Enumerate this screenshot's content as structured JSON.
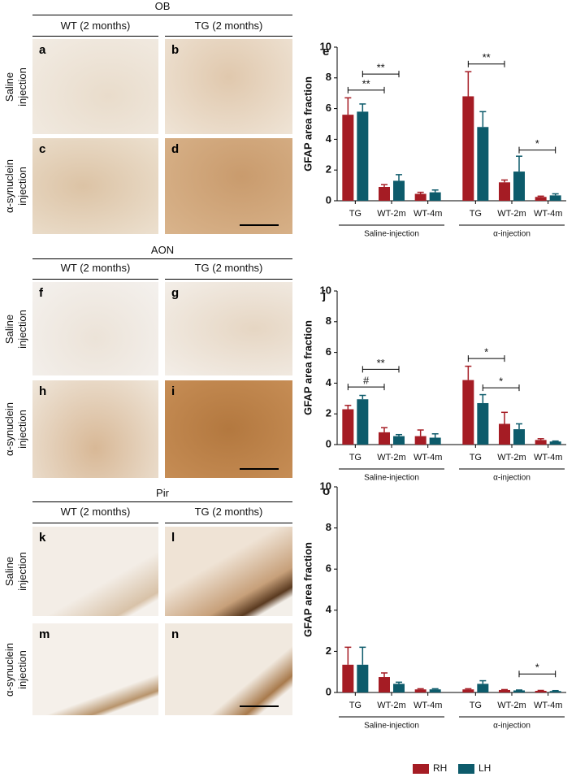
{
  "figure": {
    "sections": [
      {
        "region": "OB",
        "columns": [
          "WT (2 months)",
          "TG (2 months)"
        ],
        "rows": [
          "Saline injection",
          "α-synuclein injection"
        ],
        "letters": [
          "a",
          "b",
          "c",
          "d"
        ]
      },
      {
        "region": "AON",
        "columns": [
          "WT (2 months)",
          "TG (2 months)"
        ],
        "rows": [
          "Saline injection",
          "α-synuclein injection"
        ],
        "letters": [
          "f",
          "g",
          "h",
          "i"
        ]
      },
      {
        "region": "Pir",
        "columns": [
          "WT (2 months)",
          "TG (2 months)"
        ],
        "rows": [
          "Saline injection",
          "α-synuclein injection"
        ],
        "letters": [
          "k",
          "l",
          "m",
          "n"
        ]
      }
    ]
  },
  "chart_data": [
    {
      "type": "bar",
      "letter": "e",
      "ylabel": "GFAP area fraction",
      "categories": [
        "TG",
        "WT-2m",
        "WT-4m",
        "TG",
        "WT-2m",
        "WT-4m"
      ],
      "groups": [
        "Saline-injection",
        "α-injection"
      ],
      "ylim": [
        0,
        10
      ],
      "yticks": [
        0,
        2,
        4,
        6,
        8,
        10
      ],
      "series": [
        {
          "name": "RH",
          "color": "#a51c24",
          "values": [
            5.6,
            0.9,
            0.45,
            6.8,
            1.2,
            0.25
          ],
          "errors": [
            1.1,
            0.15,
            0.1,
            1.6,
            0.15,
            0.05
          ]
        },
        {
          "name": "LH",
          "color": "#0d5b6b",
          "values": [
            5.8,
            1.3,
            0.55,
            4.8,
            1.9,
            0.35
          ],
          "errors": [
            0.5,
            0.4,
            0.15,
            1.0,
            1.0,
            0.1
          ]
        }
      ],
      "annotations": [
        {
          "label": "**",
          "y": 7.2,
          "from": [
            0,
            0
          ],
          "to": [
            1,
            0
          ]
        },
        {
          "label": "**",
          "y": 8.25,
          "from": [
            0,
            1
          ],
          "to": [
            1,
            1
          ]
        },
        {
          "label": "**",
          "y": 8.9,
          "from": [
            3,
            0
          ],
          "to": [
            4,
            0
          ]
        },
        {
          "label": "*",
          "y": 3.3,
          "from": [
            4,
            1
          ],
          "to": [
            5,
            1
          ]
        }
      ]
    },
    {
      "type": "bar",
      "letter": "j",
      "ylabel": "GFAP area fraction",
      "categories": [
        "TG",
        "WT-2m",
        "WT-4m",
        "TG",
        "WT-2m",
        "WT-4m"
      ],
      "groups": [
        "Saline-injection",
        "α-injection"
      ],
      "ylim": [
        0,
        10
      ],
      "yticks": [
        0,
        2,
        4,
        6,
        8,
        10
      ],
      "series": [
        {
          "name": "RH",
          "color": "#a51c24",
          "values": [
            2.3,
            0.8,
            0.55,
            4.2,
            1.35,
            0.3
          ],
          "errors": [
            0.25,
            0.3,
            0.4,
            0.9,
            0.75,
            0.08
          ]
        },
        {
          "name": "LH",
          "color": "#0d5b6b",
          "values": [
            2.95,
            0.55,
            0.45,
            2.7,
            1.0,
            0.2
          ],
          "errors": [
            0.25,
            0.1,
            0.25,
            0.55,
            0.35,
            0.03
          ]
        }
      ],
      "annotations": [
        {
          "label": "#",
          "y": 3.75,
          "from": [
            0,
            0
          ],
          "to": [
            1,
            0
          ]
        },
        {
          "label": "**",
          "y": 4.9,
          "from": [
            0,
            1
          ],
          "to": [
            1,
            1
          ]
        },
        {
          "label": "*",
          "y": 5.6,
          "from": [
            3,
            0
          ],
          "to": [
            4,
            0
          ]
        },
        {
          "label": "*",
          "y": 3.7,
          "from": [
            3,
            1
          ],
          "to": [
            4,
            1
          ]
        }
      ]
    },
    {
      "type": "bar",
      "letter": "o",
      "ylabel": "GFAP area fraction",
      "categories": [
        "TG",
        "WT-2m",
        "WT-4m",
        "TG",
        "WT-2m",
        "WT-4m"
      ],
      "groups": [
        "Saline-injection",
        "α-injection"
      ],
      "ylim": [
        0,
        10
      ],
      "yticks": [
        0,
        2,
        4,
        6,
        8,
        10
      ],
      "series": [
        {
          "name": "RH",
          "color": "#a51c24",
          "values": [
            1.35,
            0.75,
            0.15,
            0.15,
            0.12,
            0.08
          ],
          "errors": [
            0.85,
            0.2,
            0.03,
            0.03,
            0.02,
            0.02
          ]
        },
        {
          "name": "LH",
          "color": "#0d5b6b",
          "values": [
            1.35,
            0.42,
            0.15,
            0.42,
            0.1,
            0.07
          ],
          "errors": [
            0.85,
            0.08,
            0.03,
            0.15,
            0.02,
            0.02
          ]
        }
      ],
      "annotations": [
        {
          "label": "*",
          "y": 0.9,
          "from": [
            4,
            1
          ],
          "to": [
            5,
            1
          ]
        }
      ]
    }
  ]
}
